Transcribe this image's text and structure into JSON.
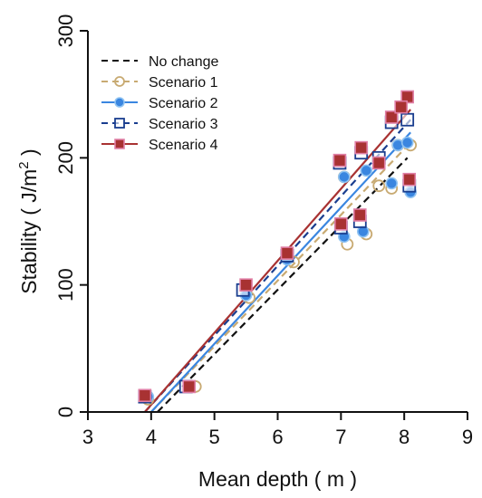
{
  "chart_data": {
    "type": "scatter",
    "title": "",
    "xlabel": "Mean depth ( m )",
    "ylabel_main": "Stability ( J/m",
    "ylabel_sup": "2",
    "ylabel_end": " )",
    "xlim": [
      3,
      9
    ],
    "ylim": [
      0,
      300
    ],
    "x_ticks": [
      3,
      4,
      5,
      6,
      7,
      8,
      9
    ],
    "y_ticks": [
      0,
      100,
      200,
      300
    ],
    "grid": false,
    "legend_position": "top-left",
    "series": [
      {
        "name": "No change",
        "color": "#111111",
        "marker": "none",
        "line": "dashed",
        "points": [],
        "fit": [
          [
            4.1,
            0
          ],
          [
            8.05,
            200
          ]
        ]
      },
      {
        "name": "Scenario 1",
        "color": "#c8aa72",
        "marker": "circle-open",
        "line": "dashed",
        "points": [
          [
            3.95,
            10
          ],
          [
            4.7,
            20
          ],
          [
            5.55,
            90
          ],
          [
            6.25,
            118
          ],
          [
            7.1,
            132
          ],
          [
            7.4,
            140
          ],
          [
            7.05,
            185
          ],
          [
            7.8,
            176
          ],
          [
            7.6,
            178
          ],
          [
            8.1,
            210
          ],
          [
            7.9,
            210
          ]
        ],
        "fit": [
          [
            4.0,
            0
          ],
          [
            8.1,
            212
          ]
        ]
      },
      {
        "name": "Scenario 2",
        "color": "#3a86e0",
        "marker": "circle-filled",
        "line": "solid",
        "points": [
          [
            3.95,
            12
          ],
          [
            4.6,
            20
          ],
          [
            5.5,
            92
          ],
          [
            6.15,
            120
          ],
          [
            7.05,
            138
          ],
          [
            7.35,
            142
          ],
          [
            7.05,
            185
          ],
          [
            7.8,
            180
          ],
          [
            8.1,
            173
          ],
          [
            7.9,
            210
          ],
          [
            8.05,
            212
          ],
          [
            7.4,
            190
          ]
        ],
        "fit": [
          [
            4.0,
            0
          ],
          [
            8.1,
            220
          ]
        ]
      },
      {
        "name": "Scenario 3",
        "color": "#1a3e8f",
        "marker": "square-open",
        "line": "dashed",
        "points": [
          [
            3.9,
            12
          ],
          [
            4.55,
            20
          ],
          [
            5.45,
            96
          ],
          [
            6.15,
            123
          ],
          [
            7.0,
            145
          ],
          [
            7.3,
            150
          ],
          [
            6.98,
            196
          ],
          [
            7.32,
            204
          ],
          [
            7.8,
            228
          ],
          [
            8.05,
            230
          ],
          [
            8.08,
            178
          ],
          [
            7.6,
            200
          ]
        ],
        "fit": [
          [
            3.9,
            0
          ],
          [
            8.1,
            230
          ]
        ]
      },
      {
        "name": "Scenario 4",
        "color": "#a83232",
        "marker": "square-filled",
        "line": "solid",
        "points": [
          [
            3.9,
            13
          ],
          [
            4.6,
            20
          ],
          [
            5.5,
            100
          ],
          [
            6.15,
            125
          ],
          [
            7.0,
            148
          ],
          [
            7.3,
            155
          ],
          [
            6.98,
            198
          ],
          [
            7.32,
            208
          ],
          [
            7.8,
            232
          ],
          [
            8.05,
            248
          ],
          [
            8.08,
            183
          ],
          [
            7.6,
            196
          ],
          [
            7.95,
            240
          ]
        ],
        "fit": [
          [
            3.9,
            0
          ],
          [
            8.1,
            238
          ]
        ]
      }
    ]
  }
}
